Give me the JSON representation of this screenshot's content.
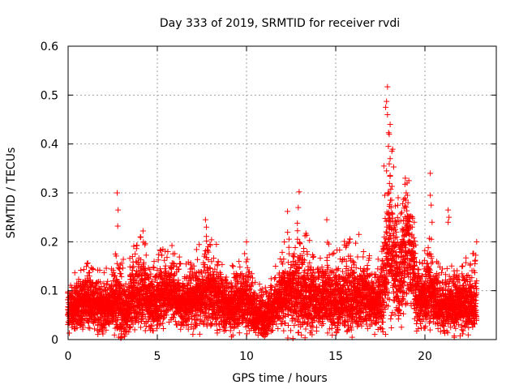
{
  "chart_data": {
    "type": "scatter",
    "title": "Day 333 of 2019, SRMTID for receiver rvdi",
    "xlabel": "GPS time / hours",
    "ylabel": "SRMTID / TECUs",
    "xlim": [
      0,
      24
    ],
    "ylim": [
      0,
      0.6
    ],
    "xticks": [
      0,
      5,
      10,
      15,
      20
    ],
    "xtick_labels": [
      "0",
      "5",
      "10",
      "15",
      "20"
    ],
    "yticks": [
      0,
      0.1,
      0.2,
      0.3,
      0.4,
      0.5,
      0.6
    ],
    "ytick_labels": [
      "0",
      "0.1",
      "0.2",
      "0.3",
      "0.4",
      "0.5",
      "0.6"
    ],
    "grid": true,
    "marker": "+",
    "series_color": "#ff0000",
    "seed": 333,
    "points_per_cluster": 12,
    "x_step": 0.04,
    "x_end": 22.9,
    "envelope": {
      "x": [
        0,
        0.5,
        1,
        1.5,
        2,
        2.5,
        2.8,
        3.2,
        3.5,
        4,
        4.3,
        4.6,
        5,
        5.5,
        6,
        6.5,
        7,
        7.5,
        7.8,
        8.5,
        9,
        9.5,
        10,
        10.5,
        11,
        11.5,
        12,
        12.5,
        13,
        13.5,
        14,
        14.5,
        15,
        15.5,
        16,
        16.5,
        17,
        17.5,
        17.8,
        18,
        18.3,
        18.5,
        18.8,
        19,
        19.3,
        19.5,
        19.8,
        20,
        20.3,
        20.5,
        21,
        21.5,
        22,
        22.5,
        22.9
      ],
      "base": [
        0.055,
        0.07,
        0.075,
        0.07,
        0.065,
        0.075,
        0.08,
        0.05,
        0.08,
        0.09,
        0.1,
        0.07,
        0.08,
        0.1,
        0.09,
        0.07,
        0.08,
        0.09,
        0.1,
        0.08,
        0.065,
        0.07,
        0.08,
        0.05,
        0.045,
        0.06,
        0.09,
        0.1,
        0.1,
        0.09,
        0.08,
        0.09,
        0.08,
        0.085,
        0.09,
        0.08,
        0.075,
        0.08,
        0.12,
        0.2,
        0.15,
        0.12,
        0.16,
        0.2,
        0.17,
        0.09,
        0.08,
        0.08,
        0.1,
        0.08,
        0.065,
        0.07,
        0.075,
        0.075,
        0.08
      ],
      "amp": [
        0.04,
        0.045,
        0.05,
        0.045,
        0.045,
        0.05,
        0.09,
        0.05,
        0.06,
        0.07,
        0.07,
        0.05,
        0.055,
        0.06,
        0.06,
        0.05,
        0.06,
        0.065,
        0.08,
        0.06,
        0.05,
        0.055,
        0.06,
        0.045,
        0.04,
        0.045,
        0.065,
        0.08,
        0.09,
        0.07,
        0.06,
        0.07,
        0.06,
        0.07,
        0.07,
        0.06,
        0.055,
        0.06,
        0.1,
        0.16,
        0.12,
        0.09,
        0.1,
        0.11,
        0.1,
        0.06,
        0.05,
        0.06,
        0.08,
        0.06,
        0.045,
        0.05,
        0.055,
        0.06,
        0.06
      ]
    },
    "peaks": [
      {
        "x": 2.75,
        "y": 0.3
      },
      {
        "x": 2.8,
        "y": 0.265
      },
      {
        "x": 2.78,
        "y": 0.232
      },
      {
        "x": 4.2,
        "y": 0.222
      },
      {
        "x": 4.05,
        "y": 0.21
      },
      {
        "x": 7.7,
        "y": 0.245
      },
      {
        "x": 7.75,
        "y": 0.23
      },
      {
        "x": 7.85,
        "y": 0.19
      },
      {
        "x": 10.0,
        "y": 0.2
      },
      {
        "x": 12.3,
        "y": 0.262
      },
      {
        "x": 12.95,
        "y": 0.302
      },
      {
        "x": 12.9,
        "y": 0.27
      },
      {
        "x": 12.85,
        "y": 0.238
      },
      {
        "x": 14.5,
        "y": 0.245
      },
      {
        "x": 16.3,
        "y": 0.215
      },
      {
        "x": 17.9,
        "y": 0.517
      },
      {
        "x": 17.85,
        "y": 0.487
      },
      {
        "x": 17.8,
        "y": 0.475
      },
      {
        "x": 17.9,
        "y": 0.46
      },
      {
        "x": 18.05,
        "y": 0.44
      },
      {
        "x": 18.0,
        "y": 0.42
      },
      {
        "x": 17.95,
        "y": 0.395
      },
      {
        "x": 18.05,
        "y": 0.37
      },
      {
        "x": 17.7,
        "y": 0.355
      },
      {
        "x": 17.85,
        "y": 0.345
      },
      {
        "x": 18.0,
        "y": 0.3
      },
      {
        "x": 17.75,
        "y": 0.295
      },
      {
        "x": 18.1,
        "y": 0.27
      },
      {
        "x": 18.5,
        "y": 0.29
      },
      {
        "x": 18.9,
        "y": 0.33
      },
      {
        "x": 19.0,
        "y": 0.32
      },
      {
        "x": 19.1,
        "y": 0.325
      },
      {
        "x": 18.95,
        "y": 0.3
      },
      {
        "x": 19.05,
        "y": 0.28
      },
      {
        "x": 18.7,
        "y": 0.26
      },
      {
        "x": 19.4,
        "y": 0.24
      },
      {
        "x": 18.8,
        "y": 0.225
      },
      {
        "x": 20.3,
        "y": 0.34
      },
      {
        "x": 20.3,
        "y": 0.295
      },
      {
        "x": 20.35,
        "y": 0.275
      },
      {
        "x": 20.4,
        "y": 0.24
      },
      {
        "x": 21.3,
        "y": 0.265
      },
      {
        "x": 21.35,
        "y": 0.25
      },
      {
        "x": 21.3,
        "y": 0.24
      },
      {
        "x": 22.9,
        "y": 0.2
      }
    ]
  }
}
